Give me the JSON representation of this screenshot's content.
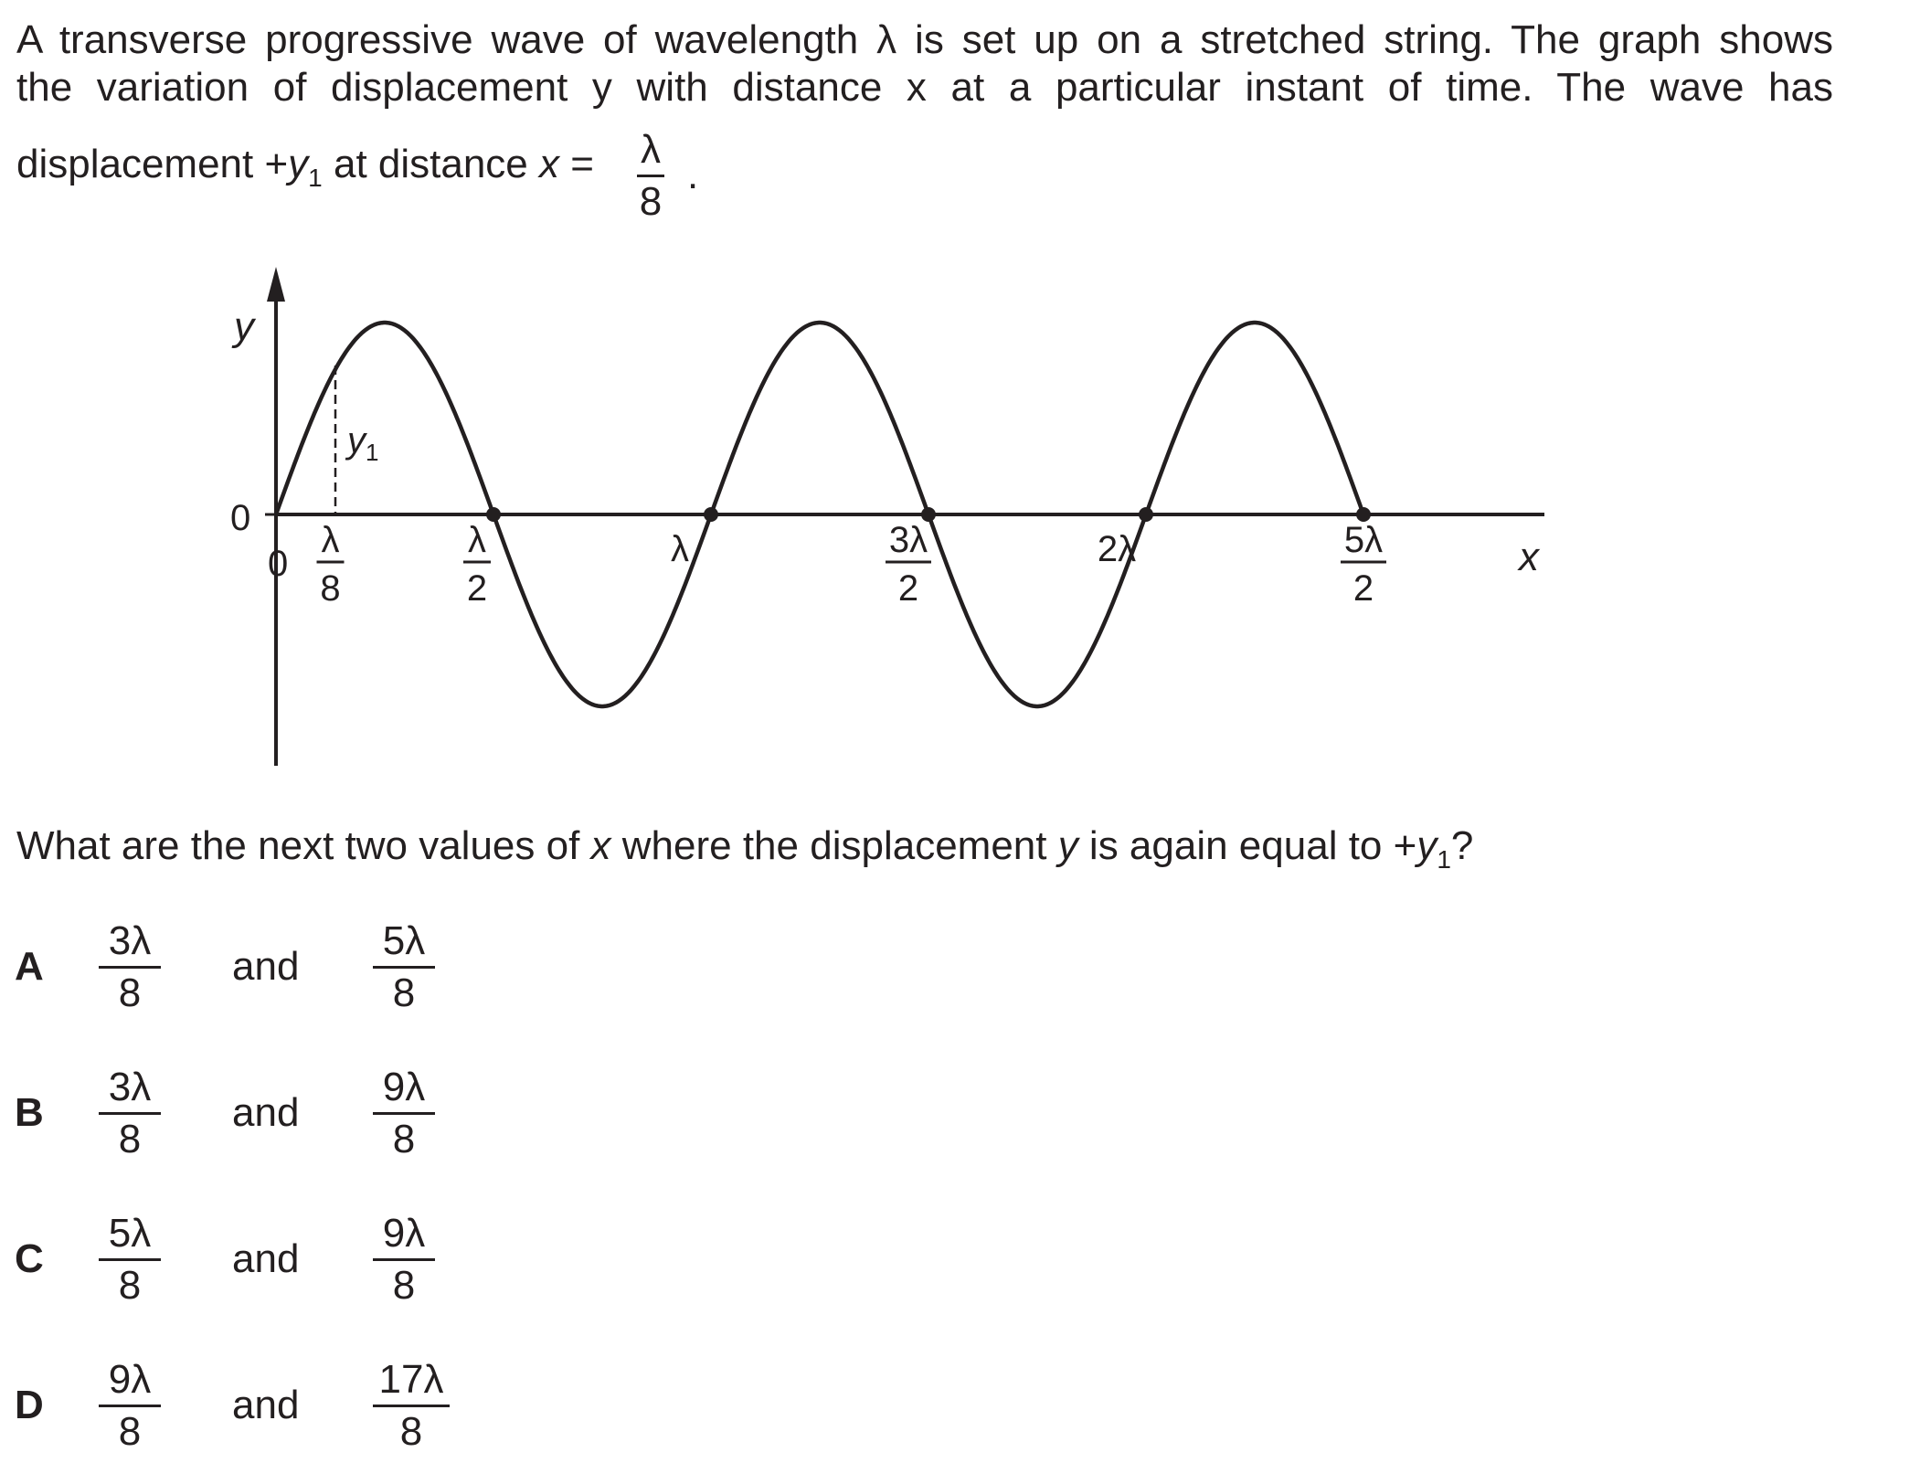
{
  "question": {
    "line1": "A transverse progressive wave of wavelength λ is set up on a stretched string. The graph shows",
    "line2": "the variation of displacement y with distance x at a particular instant of time. The wave has",
    "line3_prefix": "displacement +",
    "line3_y": "y",
    "line3_sub": "1",
    "line3_middle": " at distance ",
    "line3_x": "x",
    "line3_eq": " =",
    "frac_num": "λ",
    "frac_den": "8",
    "period": "."
  },
  "graph": {
    "y_axis_label": "y",
    "x_axis_label": "x",
    "zero_y": "0",
    "zero_x": "0",
    "y1_label": "y",
    "y1_sub": "1",
    "ticks": [
      {
        "num": "λ",
        "den": "8"
      },
      {
        "num": "λ",
        "den": "2"
      },
      {
        "num": "λ",
        "den": ""
      },
      {
        "num": "3λ",
        "den": "2"
      },
      {
        "num": "2λ",
        "den": ""
      },
      {
        "num": "5λ",
        "den": "2"
      }
    ]
  },
  "prompt": {
    "before": "What are the next two values of ",
    "x": "x",
    "middle": " where the displacement ",
    "y": "y",
    "after_y": " is again equal to +",
    "y1": "y",
    "sub": "1",
    "end": "?"
  },
  "options": [
    {
      "letter": "A",
      "n1": "3λ",
      "d1": "8",
      "and": "and",
      "n2": "5λ",
      "d2": "8"
    },
    {
      "letter": "B",
      "n1": "3λ",
      "d1": "8",
      "and": "and",
      "n2": "9λ",
      "d2": "8"
    },
    {
      "letter": "C",
      "n1": "5λ",
      "d1": "8",
      "and": "and",
      "n2": "9λ",
      "d2": "8"
    },
    {
      "letter": "D",
      "n1": "9λ",
      "d1": "8",
      "and": "and",
      "n2": "17λ",
      "d2": "8"
    }
  ]
}
